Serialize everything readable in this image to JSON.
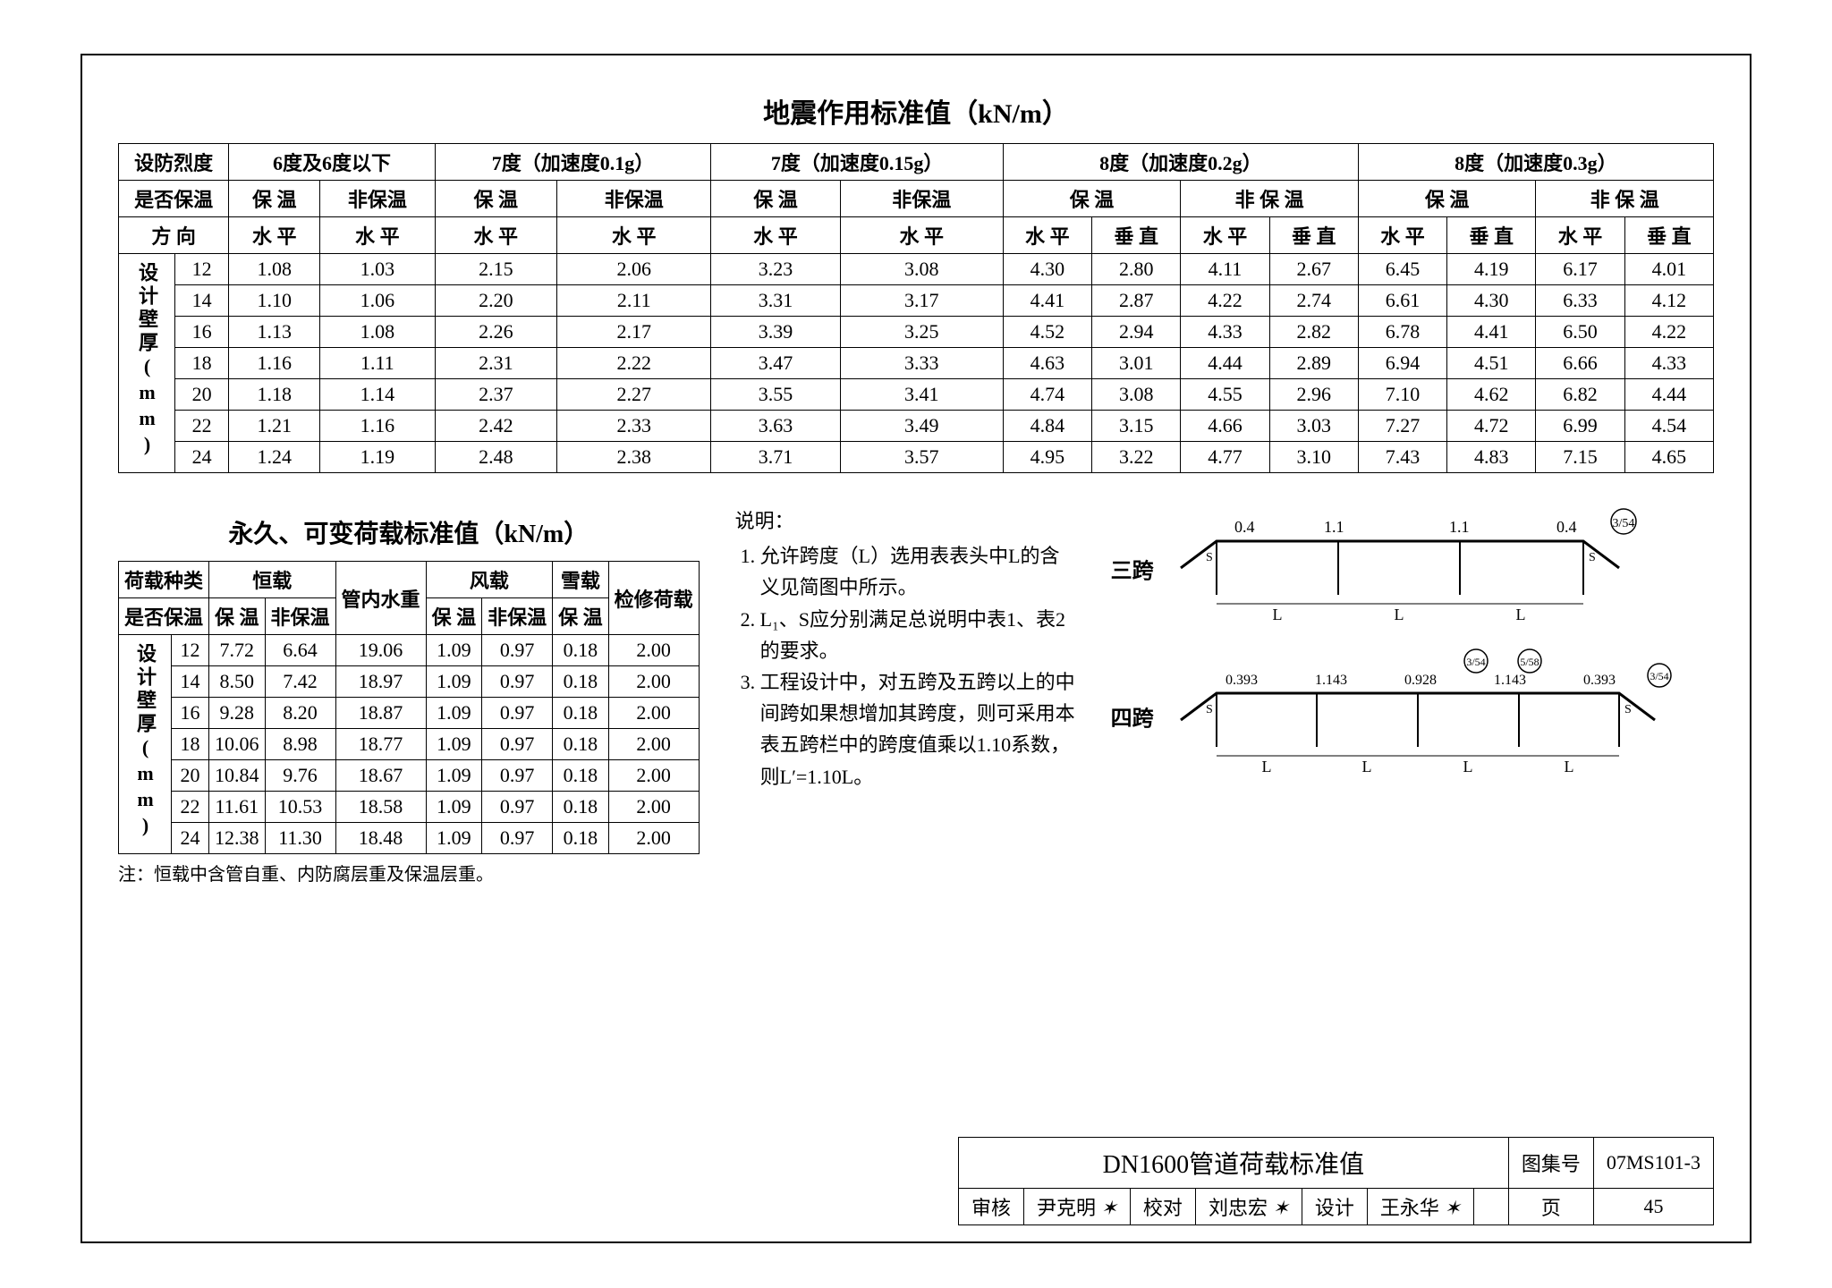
{
  "main": {
    "title1": "地震作用标准值（kN/m）",
    "title2": "永久、可变荷载标准值（kN/m）"
  },
  "table1": {
    "h_intensity": "设防烈度",
    "h_insul": "是否保温",
    "h_dir": "方 向",
    "h_thick": "设计壁厚(mm)",
    "intensities": [
      "6度及6度以下",
      "7度（加速度0.1g）",
      "7度（加速度0.15g）",
      "8度（加速度0.2g）",
      "8度（加速度0.3g）"
    ],
    "insul_labels": [
      "保 温",
      "非保温",
      "保 温",
      "非保温",
      "保 温",
      "非保温",
      "保 温",
      "非 保 温",
      "保 温",
      "非 保 温"
    ],
    "dir_labels": [
      "水 平",
      "水 平",
      "水 平",
      "水 平",
      "水 平",
      "水 平",
      "水 平",
      "垂 直",
      "水 平",
      "垂 直",
      "水 平",
      "垂 直",
      "水 平",
      "垂 直"
    ],
    "thicknesses": [
      "12",
      "14",
      "16",
      "18",
      "20",
      "22",
      "24"
    ],
    "rows": [
      [
        "1.08",
        "1.03",
        "2.15",
        "2.06",
        "3.23",
        "3.08",
        "4.30",
        "2.80",
        "4.11",
        "2.67",
        "6.45",
        "4.19",
        "6.17",
        "4.01"
      ],
      [
        "1.10",
        "1.06",
        "2.20",
        "2.11",
        "3.31",
        "3.17",
        "4.41",
        "2.87",
        "4.22",
        "2.74",
        "6.61",
        "4.30",
        "6.33",
        "4.12"
      ],
      [
        "1.13",
        "1.08",
        "2.26",
        "2.17",
        "3.39",
        "3.25",
        "4.52",
        "2.94",
        "4.33",
        "2.82",
        "6.78",
        "4.41",
        "6.50",
        "4.22"
      ],
      [
        "1.16",
        "1.11",
        "2.31",
        "2.22",
        "3.47",
        "3.33",
        "4.63",
        "3.01",
        "4.44",
        "2.89",
        "6.94",
        "4.51",
        "6.66",
        "4.33"
      ],
      [
        "1.18",
        "1.14",
        "2.37",
        "2.27",
        "3.55",
        "3.41",
        "4.74",
        "3.08",
        "4.55",
        "2.96",
        "7.10",
        "4.62",
        "6.82",
        "4.44"
      ],
      [
        "1.21",
        "1.16",
        "2.42",
        "2.33",
        "3.63",
        "3.49",
        "4.84",
        "3.15",
        "4.66",
        "3.03",
        "7.27",
        "4.72",
        "6.99",
        "4.54"
      ],
      [
        "1.24",
        "1.19",
        "2.48",
        "2.38",
        "3.71",
        "3.57",
        "4.95",
        "3.22",
        "4.77",
        "3.10",
        "7.43",
        "4.83",
        "7.15",
        "4.65"
      ]
    ]
  },
  "table2": {
    "h_loadtype": "荷载种类",
    "h_insul": "是否保温",
    "h_thick": "设计壁厚(mm)",
    "cols_top": [
      "恒载",
      "管内水重",
      "风载",
      "雪载",
      "检修荷载"
    ],
    "cols_sub": [
      "保 温",
      "非保温",
      "保 温",
      "非保温",
      "保 温"
    ],
    "thicknesses": [
      "12",
      "14",
      "16",
      "18",
      "20",
      "22",
      "24"
    ],
    "rows": [
      [
        "7.72",
        "6.64",
        "19.06",
        "1.09",
        "0.97",
        "0.18",
        "2.00"
      ],
      [
        "8.50",
        "7.42",
        "18.97",
        "1.09",
        "0.97",
        "0.18",
        "2.00"
      ],
      [
        "9.28",
        "8.20",
        "18.87",
        "1.09",
        "0.97",
        "0.18",
        "2.00"
      ],
      [
        "10.06",
        "8.98",
        "18.77",
        "1.09",
        "0.97",
        "0.18",
        "2.00"
      ],
      [
        "10.84",
        "9.76",
        "18.67",
        "1.09",
        "0.97",
        "0.18",
        "2.00"
      ],
      [
        "11.61",
        "10.53",
        "18.58",
        "1.09",
        "0.97",
        "0.18",
        "2.00"
      ],
      [
        "12.38",
        "11.30",
        "18.48",
        "1.09",
        "0.97",
        "0.18",
        "2.00"
      ]
    ],
    "footnote": "注：恒载中含管自重、内防腐层重及保温层重。"
  },
  "notes": {
    "heading": "说明：",
    "items": [
      "允许跨度（L）选用表表头中L的含义见简图中所示。",
      "L₁、S应分别满足总说明中表1、表2的要求。",
      "工程设计中，对五跨及五跨以上的中间跨如果想增加其跨度，则可采用本表五跨栏中的跨度值乘以1.10系数，则L′=1.10L。"
    ]
  },
  "diagrams": {
    "span3": {
      "label": "三跨",
      "top": [
        "0.4",
        "1.1",
        "1.1",
        "0.4"
      ],
      "callout": "3/54",
      "bottom_label": "L"
    },
    "span4": {
      "label": "四跨",
      "top": [
        "0.393",
        "1.143",
        "0.928",
        "1.143",
        "0.393"
      ],
      "callouts": [
        "3/54",
        "5/58",
        "3/54"
      ],
      "bottom_label": "L"
    }
  },
  "titleblock": {
    "title": "DN1600管道荷载标准值",
    "set_label": "图集号",
    "set_no": "07MS101-3",
    "page_label": "页",
    "page_no": "45",
    "review_label": "审核",
    "reviewer": "尹克明",
    "check_label": "校对",
    "checker": "刘忠宏",
    "design_label": "设计",
    "designer": "王永华"
  }
}
